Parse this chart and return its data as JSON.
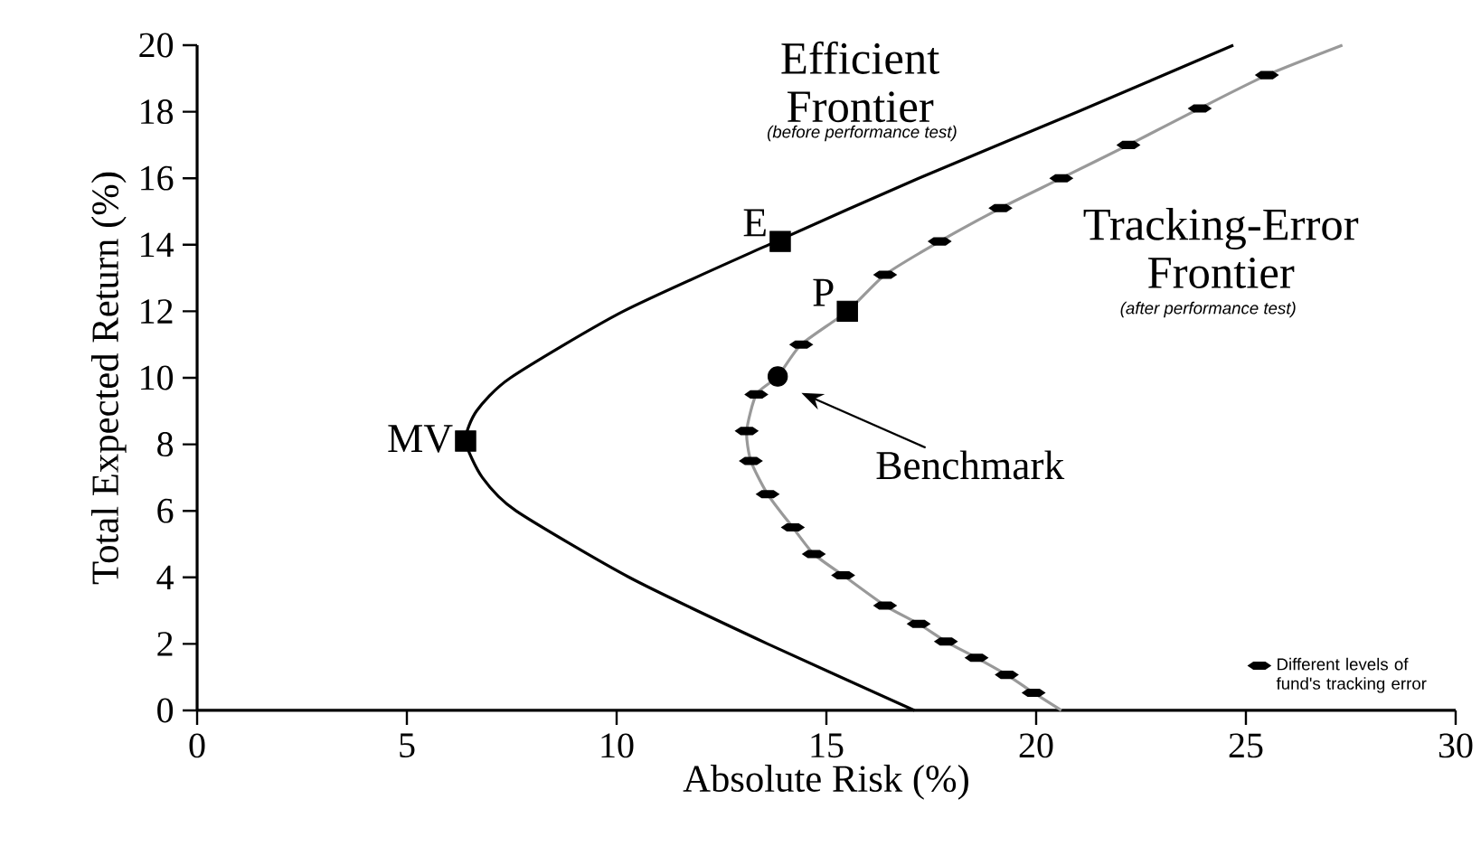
{
  "chart_data": {
    "type": "line",
    "xlabel": "Absolute Risk (%)",
    "ylabel": "Total Expected Return (%)",
    "xlim": [
      0,
      30
    ],
    "ylim": [
      0,
      20
    ],
    "xticks": [
      0,
      5,
      10,
      15,
      20,
      25,
      30
    ],
    "yticks": [
      0,
      2,
      4,
      6,
      8,
      10,
      12,
      14,
      16,
      18,
      20
    ],
    "legend": "bottom right",
    "series": [
      {
        "color": "#000000",
        "x": [
          17.1,
          13.6,
          10.3,
          7.6,
          6.8,
          6.4,
          6.66,
          7.47,
          10.16,
          13.8,
          17.2,
          21.0,
          24.7
        ],
        "values": [
          0,
          2,
          4,
          6,
          7,
          8.1,
          9,
          10,
          12,
          14.1,
          16,
          18,
          20
        ]
      },
      {
        "color": "#999999",
        "x": [
          20.6,
          19.94,
          19.3,
          18.58,
          17.85,
          17.2,
          16.4,
          15.4,
          14.7,
          14.2,
          13.6,
          13.2,
          13.1,
          13.33,
          13.84,
          14.4,
          15.5,
          16.4,
          17.7,
          19.15,
          20.6,
          22.2,
          23.9,
          25.5,
          27.3
        ],
        "values": [
          0,
          0.53,
          1.07,
          1.58,
          2.07,
          2.6,
          3.15,
          4.06,
          4.7,
          5.5,
          6.5,
          7.5,
          8.4,
          9.5,
          10.04,
          11.0,
          12.0,
          13.1,
          14.1,
          15.1,
          16.0,
          17.0,
          18.1,
          19.1,
          20
        ]
      },
      {
        "name": "Different levels of fund's tracking error",
        "type": "scatter",
        "marker": "diamond",
        "color": "#000000",
        "x": [
          19.94,
          19.3,
          18.58,
          17.85,
          17.2,
          16.4,
          15.4,
          14.7,
          14.2,
          13.6,
          13.2,
          13.1,
          13.33,
          14.4,
          16.4,
          17.7,
          19.15,
          20.6,
          22.2,
          23.9,
          25.5
        ],
        "values": [
          0.53,
          1.07,
          1.58,
          2.07,
          2.6,
          3.15,
          4.06,
          4.7,
          5.5,
          6.5,
          7.5,
          8.4,
          9.5,
          11.0,
          13.1,
          14.1,
          15.1,
          16.0,
          17.0,
          18.1,
          19.1
        ]
      },
      {
        "type": "scatter",
        "marker": "square",
        "color": "#000000",
        "x": [
          6.4,
          13.9,
          15.5
        ],
        "values": [
          8.1,
          14.1,
          12.0
        ]
      },
      {
        "type": "scatter",
        "marker": "circle",
        "color": "#000000",
        "x": [
          13.84
        ],
        "values": [
          10.04
        ]
      }
    ],
    "annotations": [
      "Efficient Frontier",
      "(before performance test)",
      "Tracking-Error Frontier",
      "(after performance test)",
      {
        "text": "MV",
        "x": 6.4,
        "y": 8.1
      },
      {
        "text": "E",
        "x": 13.9,
        "y": 14.1
      },
      {
        "text": "P",
        "x": 15.5,
        "y": 12.0
      },
      "Benchmark"
    ]
  }
}
